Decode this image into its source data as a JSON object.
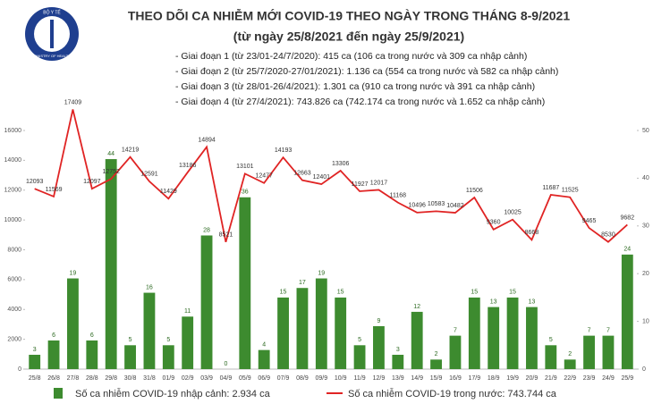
{
  "logo": {
    "name": "BỘ Y TẾ",
    "subname": "MINISTRY OF HEALTH"
  },
  "chart_data": {
    "type": "bar-line",
    "title": "THEO DÕI CA NHIỄM MỚI COVID-19 THEO NGÀY TRONG THÁNG 8-9/2021",
    "subtitle": "(từ ngày 25/8/2021 đến ngày 25/9/2021)",
    "notes": [
      "- Giai đoạn 1 (từ 23/01-24/7/2020): 415 ca (106 ca trong nước và 309 ca nhập cảnh)",
      "- Giai đoạn 2 (từ 25/7/2020-27/01/2021): 1.136 ca (554 ca trong nước và 582 ca nhập cảnh)",
      "- Giai đoạn 3 (từ 28/01-26/4/2021): 1.301 ca (910 ca trong nước và 391 ca nhập cảnh)",
      "- Giai đoạn 4 (từ 27/4/2021): 743.826 ca (742.174 ca trong nước và 1.652 ca nhập cảnh)"
    ],
    "categories": [
      "25/8",
      "26/8",
      "27/8",
      "28/8",
      "29/8",
      "30/8",
      "31/8",
      "01/9",
      "02/9",
      "03/9",
      "04/9",
      "05/9",
      "06/9",
      "07/9",
      "08/9",
      "09/9",
      "10/9",
      "11/9",
      "12/9",
      "13/9",
      "14/9",
      "15/9",
      "16/9",
      "17/9",
      "18/9",
      "19/9",
      "20/9",
      "21/9",
      "22/9",
      "23/9",
      "24/9",
      "25/9"
    ],
    "series": [
      {
        "name": "Số ca nhiễm COVID-19 nhập cảnh: 2.934 ca",
        "type": "bar",
        "axis": "y2",
        "color": "#3d8b2f",
        "values": [
          3,
          6,
          19,
          6,
          44,
          5,
          16,
          5,
          11,
          28,
          0,
          36,
          4,
          15,
          17,
          19,
          15,
          5,
          9,
          3,
          12,
          2,
          7,
          15,
          13,
          15,
          13,
          5,
          2,
          7,
          7,
          24
        ]
      },
      {
        "name": "Số ca nhiễm COVID-19 trong nước: 743.744 ca",
        "type": "line",
        "color": "#e02424",
        "values": [
          12093,
          11569,
          17409,
          12097,
          12752,
          14219,
          12591,
          11429,
          13186,
          14894,
          8521,
          13101,
          12477,
          14193,
          12663,
          12401,
          13306,
          11927,
          12017,
          11168,
          10496,
          10583,
          10482,
          11506,
          9360,
          10025,
          8668,
          11687,
          11525,
          9465,
          8530,
          9682
        ]
      }
    ],
    "ylim": [
      0,
      16000
    ],
    "yticks": [
      0,
      2000,
      4000,
      6000,
      8000,
      10000,
      12000,
      14000,
      16000
    ],
    "y2lim": [
      0,
      50
    ],
    "y2ticks": [
      0,
      10,
      20,
      30,
      40,
      50
    ]
  }
}
